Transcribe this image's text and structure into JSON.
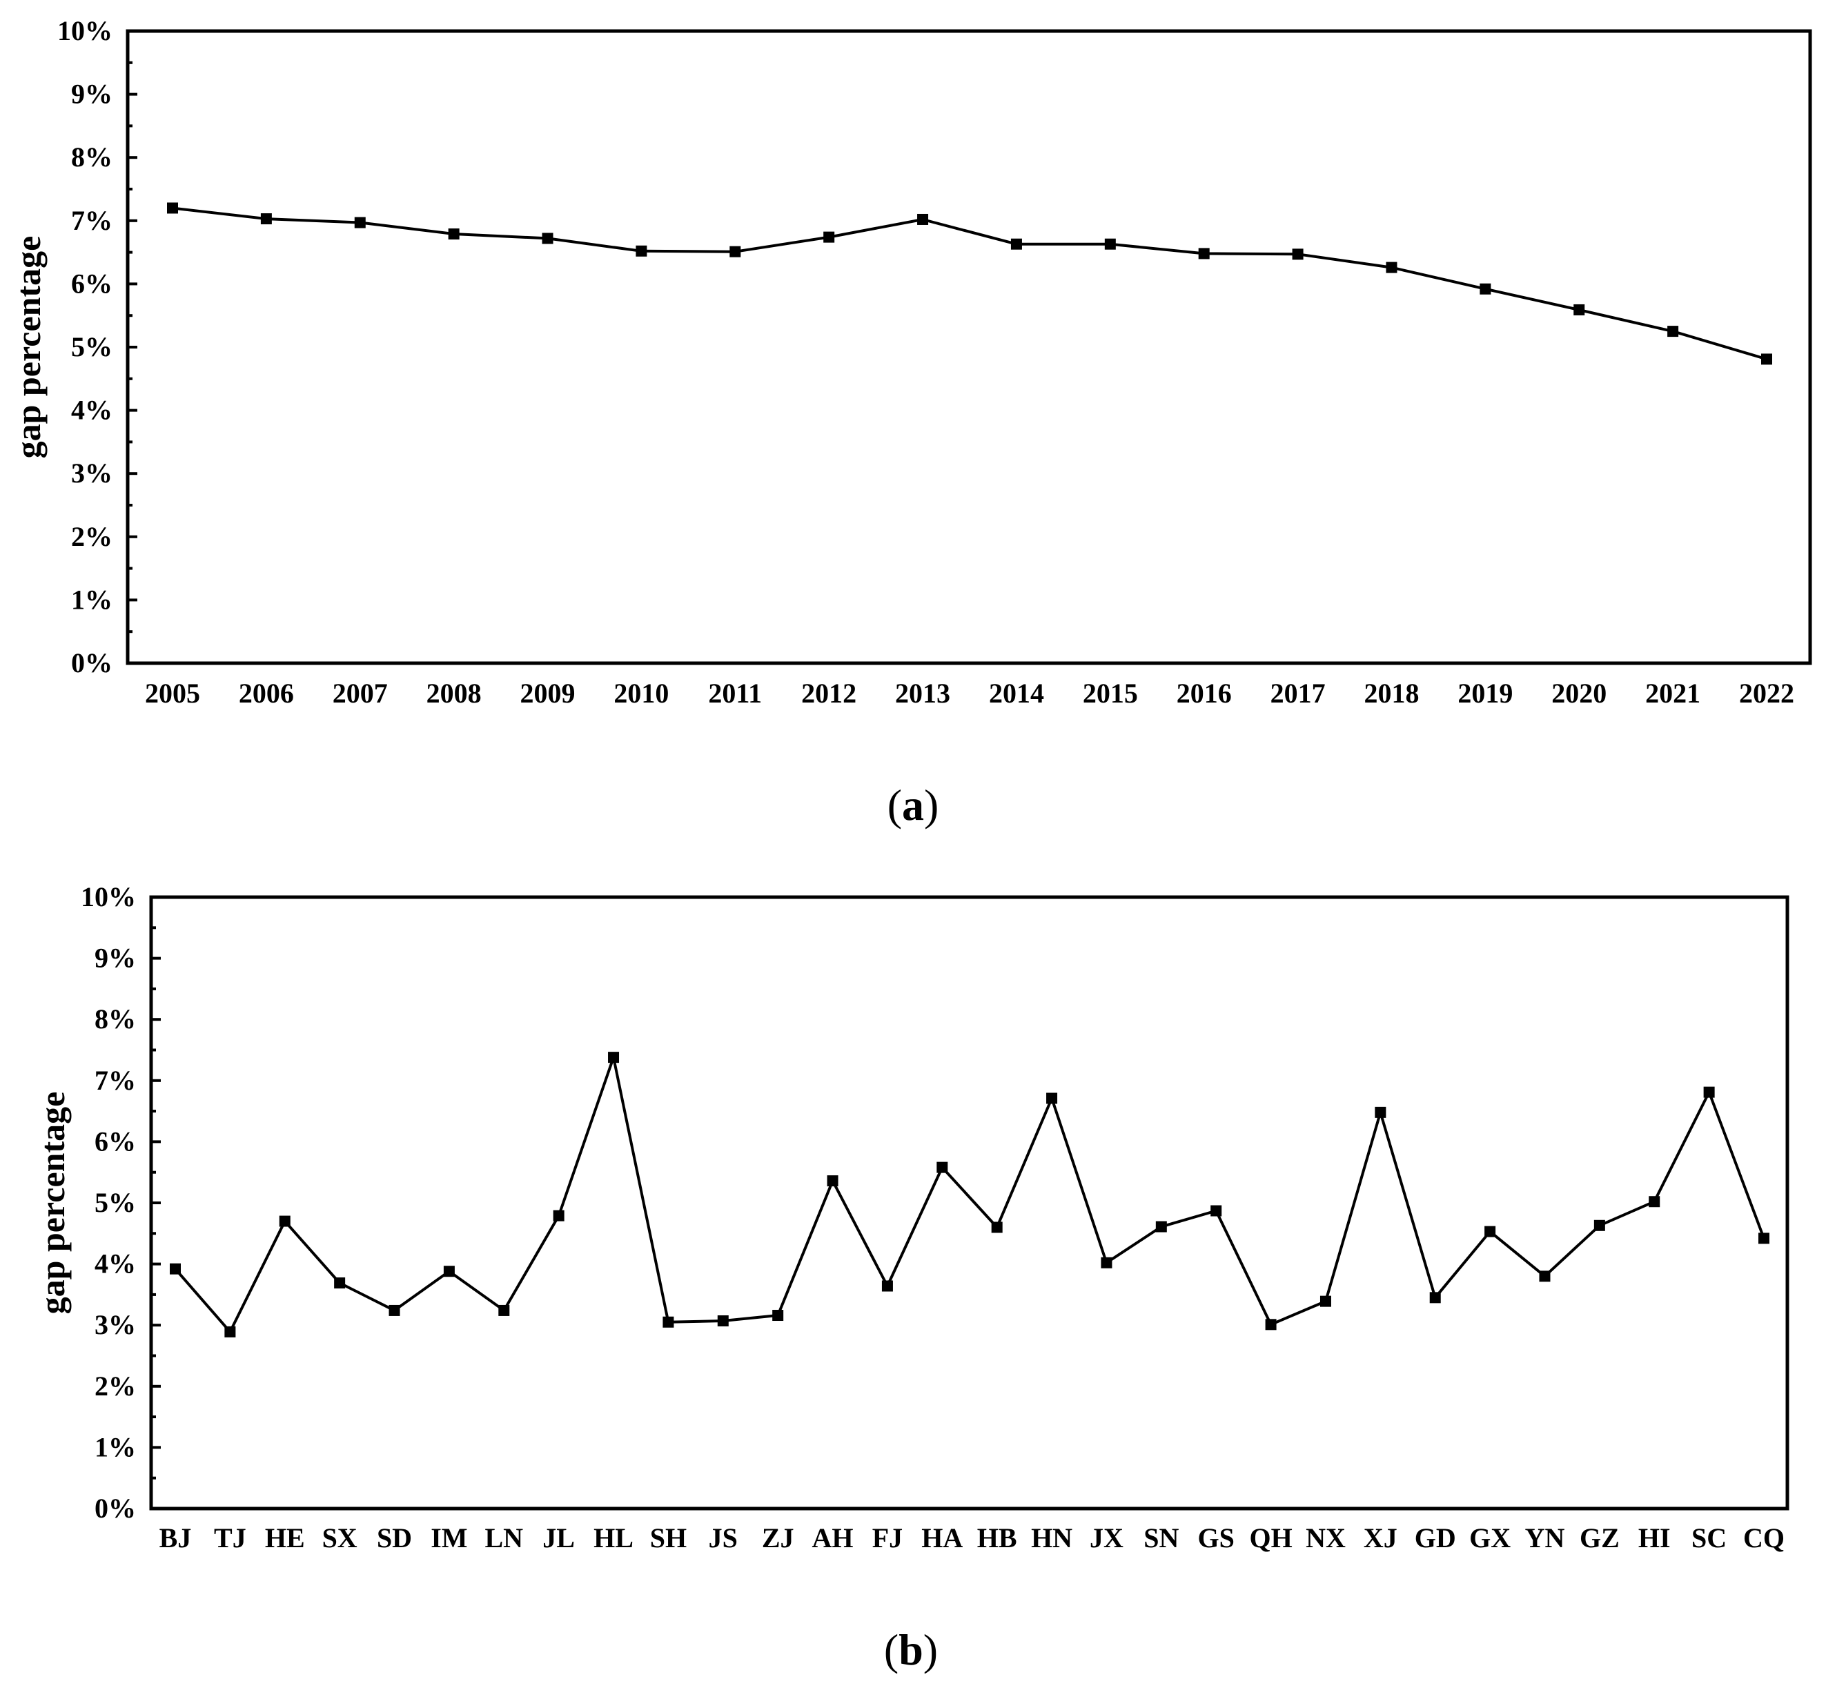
{
  "chart_data": [
    {
      "type": "line",
      "panel_label": "a",
      "ylabel": "gap percentage",
      "xlabel": "",
      "ylim": [
        0,
        10
      ],
      "y_ticks": [
        "0%",
        "1%",
        "2%",
        "3%",
        "4%",
        "5%",
        "6%",
        "7%",
        "8%",
        "9%",
        "10%"
      ],
      "categories": [
        "2005",
        "2006",
        "2007",
        "2008",
        "2009",
        "2010",
        "2011",
        "2012",
        "2013",
        "2014",
        "2015",
        "2016",
        "2017",
        "2018",
        "2019",
        "2020",
        "2021",
        "2022"
      ],
      "series": [
        {
          "values": [
            7.2,
            7.03,
            6.97,
            6.79,
            6.72,
            6.52,
            6.51,
            6.74,
            7.02,
            6.63,
            6.63,
            6.48,
            6.47,
            6.26,
            5.92,
            5.59,
            5.25,
            4.81
          ]
        }
      ],
      "grid": false,
      "marker": "square",
      "color": "#000000"
    },
    {
      "type": "line",
      "panel_label": "b",
      "ylabel": "gap percentage",
      "xlabel": "",
      "ylim": [
        0,
        10
      ],
      "y_ticks": [
        "0%",
        "1%",
        "2%",
        "3%",
        "4%",
        "5%",
        "6%",
        "7%",
        "8%",
        "9%",
        "10%"
      ],
      "categories": [
        "BJ",
        "TJ",
        "HE",
        "SX",
        "SD",
        "IM",
        "LN",
        "JL",
        "HL",
        "SH",
        "JS",
        "ZJ",
        "AH",
        "FJ",
        "HA",
        "HB",
        "HN",
        "JX",
        "SN",
        "GS",
        "QH",
        "NX",
        "XJ",
        "GD",
        "GX",
        "YN",
        "GZ",
        "HI",
        "SC",
        "CQ"
      ],
      "series": [
        {
          "values": [
            3.92,
            2.89,
            4.7,
            3.69,
            3.24,
            3.88,
            3.24,
            4.79,
            7.38,
            3.05,
            3.07,
            3.16,
            5.36,
            3.64,
            5.58,
            4.6,
            6.71,
            4.02,
            4.61,
            4.87,
            3.01,
            3.39,
            6.48,
            3.45,
            4.53,
            3.8,
            4.63,
            5.02,
            6.81,
            4.42
          ]
        }
      ],
      "grid": false,
      "marker": "square",
      "color": "#000000"
    }
  ]
}
